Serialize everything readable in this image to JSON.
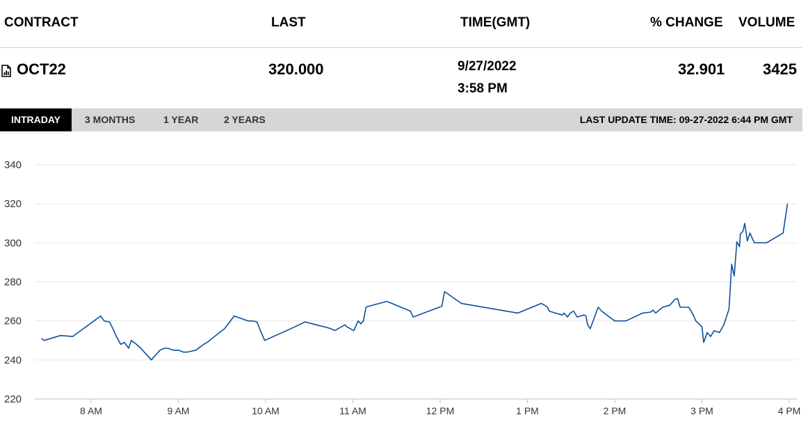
{
  "header": {
    "contract": "CONTRACT",
    "last": "LAST",
    "time": "TIME(GMT)",
    "change": "% CHANGE",
    "volume": "VOLUME"
  },
  "row": {
    "icon": "report-file-icon",
    "contract": "OCT22",
    "last": "320.000",
    "date": "9/27/2022",
    "time": "3:58 PM",
    "change": "32.901",
    "volume": "3425"
  },
  "tabs": [
    {
      "label": "INTRADAY",
      "active": true
    },
    {
      "label": "3 MONTHS",
      "active": false
    },
    {
      "label": "1 YEAR",
      "active": false
    },
    {
      "label": "2 YEARS",
      "active": false
    }
  ],
  "last_update": "LAST UPDATE TIME: 09-27-2022 6:44 PM GMT",
  "colors": {
    "line": "#0b4f9c",
    "active_tab": "#000000",
    "tab_bar": "#d6d6d6"
  },
  "chart_data": {
    "type": "line",
    "title": "",
    "xlabel": "",
    "ylabel": "",
    "ylim": [
      220,
      340
    ],
    "yticks": [
      220,
      240,
      260,
      280,
      300,
      320,
      340
    ],
    "xticks": [
      "8 AM",
      "9 AM",
      "10 AM",
      "11 AM",
      "12 PM",
      "1 PM",
      "2 PM",
      "3 PM",
      "4 PM"
    ],
    "grid": true,
    "x_units": "hour of day (GMT)",
    "series": [
      {
        "x": [
          7.43,
          7.46,
          7.65,
          7.79,
          8.11,
          8.15,
          8.21,
          8.25,
          8.29,
          8.34,
          8.38,
          8.43,
          8.46,
          8.52,
          8.57,
          8.69,
          8.79,
          8.84,
          8.88,
          8.94,
          9.0,
          9.06,
          9.1,
          9.2,
          9.29,
          9.33,
          9.47,
          9.53,
          9.64,
          9.8,
          9.85,
          9.9,
          9.95,
          9.99,
          10.04,
          10.24,
          10.36,
          10.45,
          10.58,
          10.67,
          10.75,
          10.79,
          10.91,
          10.93,
          11.01,
          11.06,
          11.09,
          11.12,
          11.15,
          11.18,
          11.39,
          11.66,
          11.69,
          11.99,
          12.02,
          12.05,
          12.24,
          12.89,
          13.16,
          13.23,
          13.25,
          13.32,
          13.4,
          13.42,
          13.46,
          13.49,
          13.53,
          13.57,
          13.65,
          13.67,
          13.69,
          13.72,
          13.79,
          13.81,
          13.85,
          14.0,
          14.13,
          14.32,
          14.41,
          14.44,
          14.47,
          14.55,
          14.63,
          14.69,
          14.72,
          14.75,
          14.85,
          14.9,
          14.93,
          15.0,
          15.02,
          15.06,
          15.1,
          15.14,
          15.2,
          15.25,
          15.31,
          15.34,
          15.37,
          15.4,
          15.43,
          15.44,
          15.47,
          15.49,
          15.52,
          15.55,
          15.6,
          15.74,
          15.93,
          15.98
        ],
        "y": [
          251,
          250,
          252.5,
          252,
          262.5,
          260,
          259.5,
          256,
          252,
          248,
          249,
          246,
          250,
          248,
          246,
          240,
          245,
          246,
          246,
          245,
          245,
          244,
          244,
          245,
          248,
          249,
          254,
          256,
          262.5,
          260,
          260,
          259.5,
          254,
          250,
          251,
          255,
          257.5,
          259.5,
          258,
          257,
          256,
          255,
          258,
          257,
          255,
          260,
          258.5,
          260,
          267,
          267.5,
          270,
          265,
          262,
          267,
          267.5,
          275,
          269,
          264,
          269,
          267,
          265,
          264,
          263,
          264,
          262,
          264,
          265,
          262,
          263,
          262.5,
          258,
          256,
          264.5,
          267,
          265,
          260,
          260,
          264,
          264.5,
          265.5,
          264,
          267,
          268,
          271,
          271.5,
          267,
          267,
          263,
          260,
          257,
          249,
          254,
          252,
          255,
          254,
          258,
          266,
          289,
          283,
          300.5,
          298,
          304.5,
          306,
          310,
          301,
          305,
          300,
          300,
          305,
          320
        ]
      }
    ]
  }
}
